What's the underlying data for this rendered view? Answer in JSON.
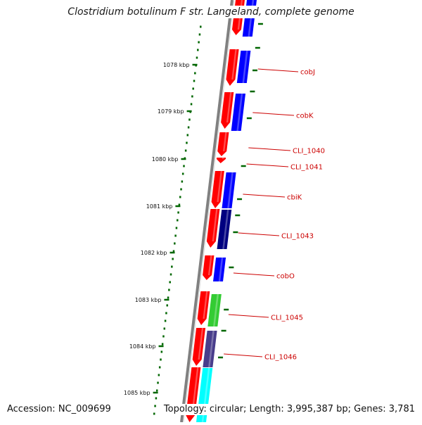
{
  "title": "Clostridium botulinum F str. Langeland, complete genome",
  "footer": {
    "accession": "Accession: NC_009699",
    "summary": "Topology: circular; Length: 3,995,387 bp; Genes: 3,781"
  },
  "scale_ticks": [
    "1078 kbp",
    "1079 kbp",
    "1080 kbp",
    "1081 kbp",
    "1082 kbp",
    "1083 kbp",
    "1084 kbp",
    "1085 kbp"
  ],
  "genes": [
    "cobJ",
    "cobK",
    "CLI_1040",
    "CLI_1041",
    "cbiK",
    "CLI_1043",
    "cobO",
    "CLI_1045",
    "CLI_1046"
  ],
  "colors": {
    "forward_strand": "#ff0000",
    "cog_blue": "#0000ff",
    "cog_navy": "#000080",
    "cog_green": "#33cc33",
    "cog_slate": "#483d8b",
    "cog_cyan": "#00ffff",
    "tick_green": "#006600",
    "label_red": "#cc0000",
    "backbone": "#808080"
  }
}
